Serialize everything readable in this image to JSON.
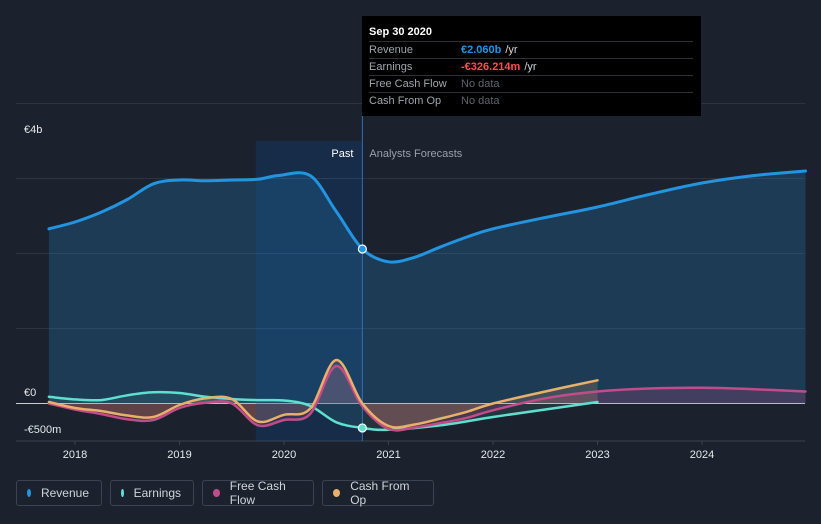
{
  "colors": {
    "revenue": "#2394df",
    "earnings": "#5fdfcf",
    "free_cash_flow": "#c44b8a",
    "cash_from_op": "#e8b06a",
    "background": "#1b222d"
  },
  "tooltip": {
    "date": "Sep 30 2020",
    "rows": [
      {
        "label": "Revenue",
        "value": "€2.060b",
        "unit": "/yr",
        "color": "#2394df"
      },
      {
        "label": "Earnings",
        "value": "-€326.214m",
        "unit": "/yr",
        "color": "#ff4f4f"
      },
      {
        "label": "Free Cash Flow",
        "value": "No data",
        "unit": ""
      },
      {
        "label": "Cash From Op",
        "value": "No data",
        "unit": ""
      }
    ]
  },
  "legend": [
    {
      "label": "Revenue",
      "color": "#2394df"
    },
    {
      "label": "Earnings",
      "color": "#5fdfcf"
    },
    {
      "label": "Free Cash Flow",
      "color": "#c44b8a"
    },
    {
      "label": "Cash From Op",
      "color": "#e8b06a"
    }
  ],
  "chart_data": {
    "type": "area",
    "title": "",
    "xlabel": "",
    "ylabel": "",
    "x_range": [
      2017.6,
      2024.99
    ],
    "ylim": [
      -500,
      4000
    ],
    "y_tick_labels": [
      {
        "value": 4000,
        "label": "€4b"
      },
      {
        "value": 0,
        "label": "€0"
      },
      {
        "value": -500,
        "label": "-€500m"
      }
    ],
    "x_ticks": [
      2018,
      2019,
      2020,
      2021,
      2022,
      2023,
      2024
    ],
    "grid_values": [
      4000,
      3000,
      2000,
      1000,
      0
    ],
    "past_label": "Past",
    "forecast_label": "Analysts Forecasts",
    "past_end": 2020.75,
    "past_shade_start": 2019.75,
    "series": [
      {
        "name": "Revenue",
        "points": [
          [
            2017.75,
            2330
          ],
          [
            2018.0,
            2420
          ],
          [
            2018.25,
            2550
          ],
          [
            2018.5,
            2720
          ],
          [
            2018.75,
            2930
          ],
          [
            2019.0,
            2980
          ],
          [
            2019.25,
            2970
          ],
          [
            2019.5,
            2980
          ],
          [
            2019.75,
            2990
          ],
          [
            2019.95,
            3040
          ],
          [
            2020.25,
            3040
          ],
          [
            2020.5,
            2560
          ],
          [
            2020.75,
            2060
          ],
          [
            2021.0,
            1890
          ],
          [
            2021.25,
            1950
          ],
          [
            2021.5,
            2090
          ],
          [
            2021.75,
            2220
          ],
          [
            2022.0,
            2330
          ],
          [
            2022.5,
            2480
          ],
          [
            2023.0,
            2620
          ],
          [
            2023.5,
            2790
          ],
          [
            2024.0,
            2940
          ],
          [
            2024.5,
            3040
          ],
          [
            2024.99,
            3100
          ]
        ]
      },
      {
        "name": "Earnings",
        "points": [
          [
            2017.75,
            90
          ],
          [
            2018.0,
            55
          ],
          [
            2018.25,
            45
          ],
          [
            2018.5,
            110
          ],
          [
            2018.75,
            150
          ],
          [
            2019.0,
            140
          ],
          [
            2019.25,
            90
          ],
          [
            2019.5,
            60
          ],
          [
            2019.75,
            45
          ],
          [
            2020.0,
            40
          ],
          [
            2020.25,
            -30
          ],
          [
            2020.5,
            -250
          ],
          [
            2020.75,
            -326
          ],
          [
            2021.0,
            -350
          ],
          [
            2021.5,
            -290
          ],
          [
            2022.0,
            -180
          ],
          [
            2022.5,
            -80
          ],
          [
            2023.0,
            20
          ]
        ]
      },
      {
        "name": "Free Cash Flow",
        "points": [
          [
            2017.75,
            0
          ],
          [
            2018.0,
            -80
          ],
          [
            2018.25,
            -140
          ],
          [
            2018.5,
            -210
          ],
          [
            2018.75,
            -220
          ],
          [
            2019.0,
            -60
          ],
          [
            2019.25,
            10
          ],
          [
            2019.5,
            0
          ],
          [
            2019.75,
            -290
          ],
          [
            2020.0,
            -220
          ],
          [
            2020.25,
            -140
          ],
          [
            2020.5,
            500
          ],
          [
            2020.75,
            -40
          ],
          [
            2021.0,
            -340
          ],
          [
            2021.25,
            -320
          ],
          [
            2021.5,
            -260
          ],
          [
            2021.75,
            -190
          ],
          [
            2022.0,
            -90
          ],
          [
            2022.5,
            70
          ],
          [
            2023.0,
            160
          ],
          [
            2023.5,
            200
          ],
          [
            2024.0,
            210
          ],
          [
            2024.5,
            190
          ],
          [
            2024.99,
            160
          ]
        ]
      },
      {
        "name": "Cash From Op",
        "points": [
          [
            2017.75,
            20
          ],
          [
            2018.0,
            -60
          ],
          [
            2018.25,
            -100
          ],
          [
            2018.5,
            -160
          ],
          [
            2018.75,
            -180
          ],
          [
            2019.0,
            -20
          ],
          [
            2019.25,
            70
          ],
          [
            2019.5,
            60
          ],
          [
            2019.75,
            -240
          ],
          [
            2020.0,
            -150
          ],
          [
            2020.25,
            -70
          ],
          [
            2020.5,
            580
          ],
          [
            2020.75,
            0
          ],
          [
            2021.0,
            -300
          ],
          [
            2021.25,
            -280
          ],
          [
            2021.5,
            -200
          ],
          [
            2021.75,
            -110
          ],
          [
            2022.0,
            0
          ],
          [
            2022.5,
            160
          ],
          [
            2023.0,
            310
          ]
        ]
      }
    ],
    "highlight": {
      "x": 2020.75,
      "revenue": 2060,
      "earnings": -326
    }
  }
}
